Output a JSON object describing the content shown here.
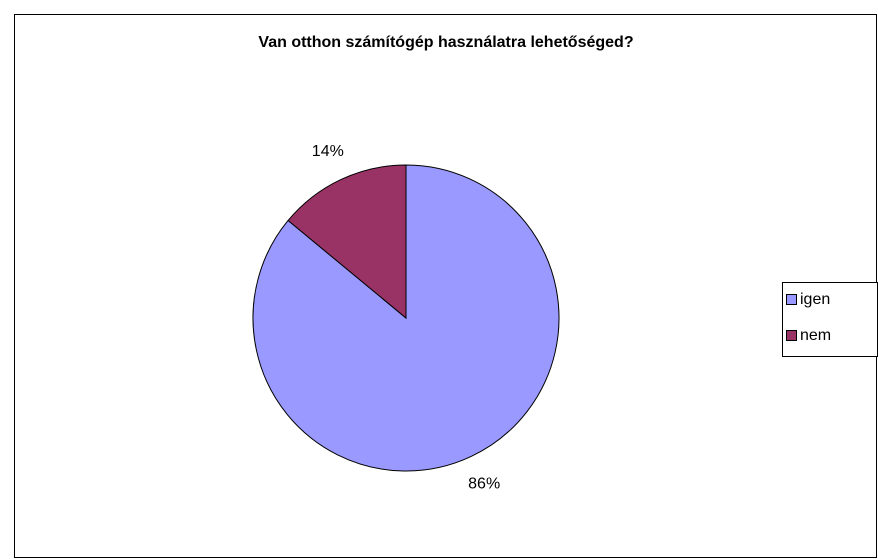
{
  "chart_data": {
    "type": "pie",
    "title": "Van otthon számítógép használatra lehetőséged?",
    "categories": [
      "igen",
      "nem"
    ],
    "values": [
      86,
      14
    ],
    "value_labels": [
      "86%",
      "14%"
    ],
    "colors": [
      "#9999ff",
      "#993366"
    ],
    "legend": "right"
  }
}
